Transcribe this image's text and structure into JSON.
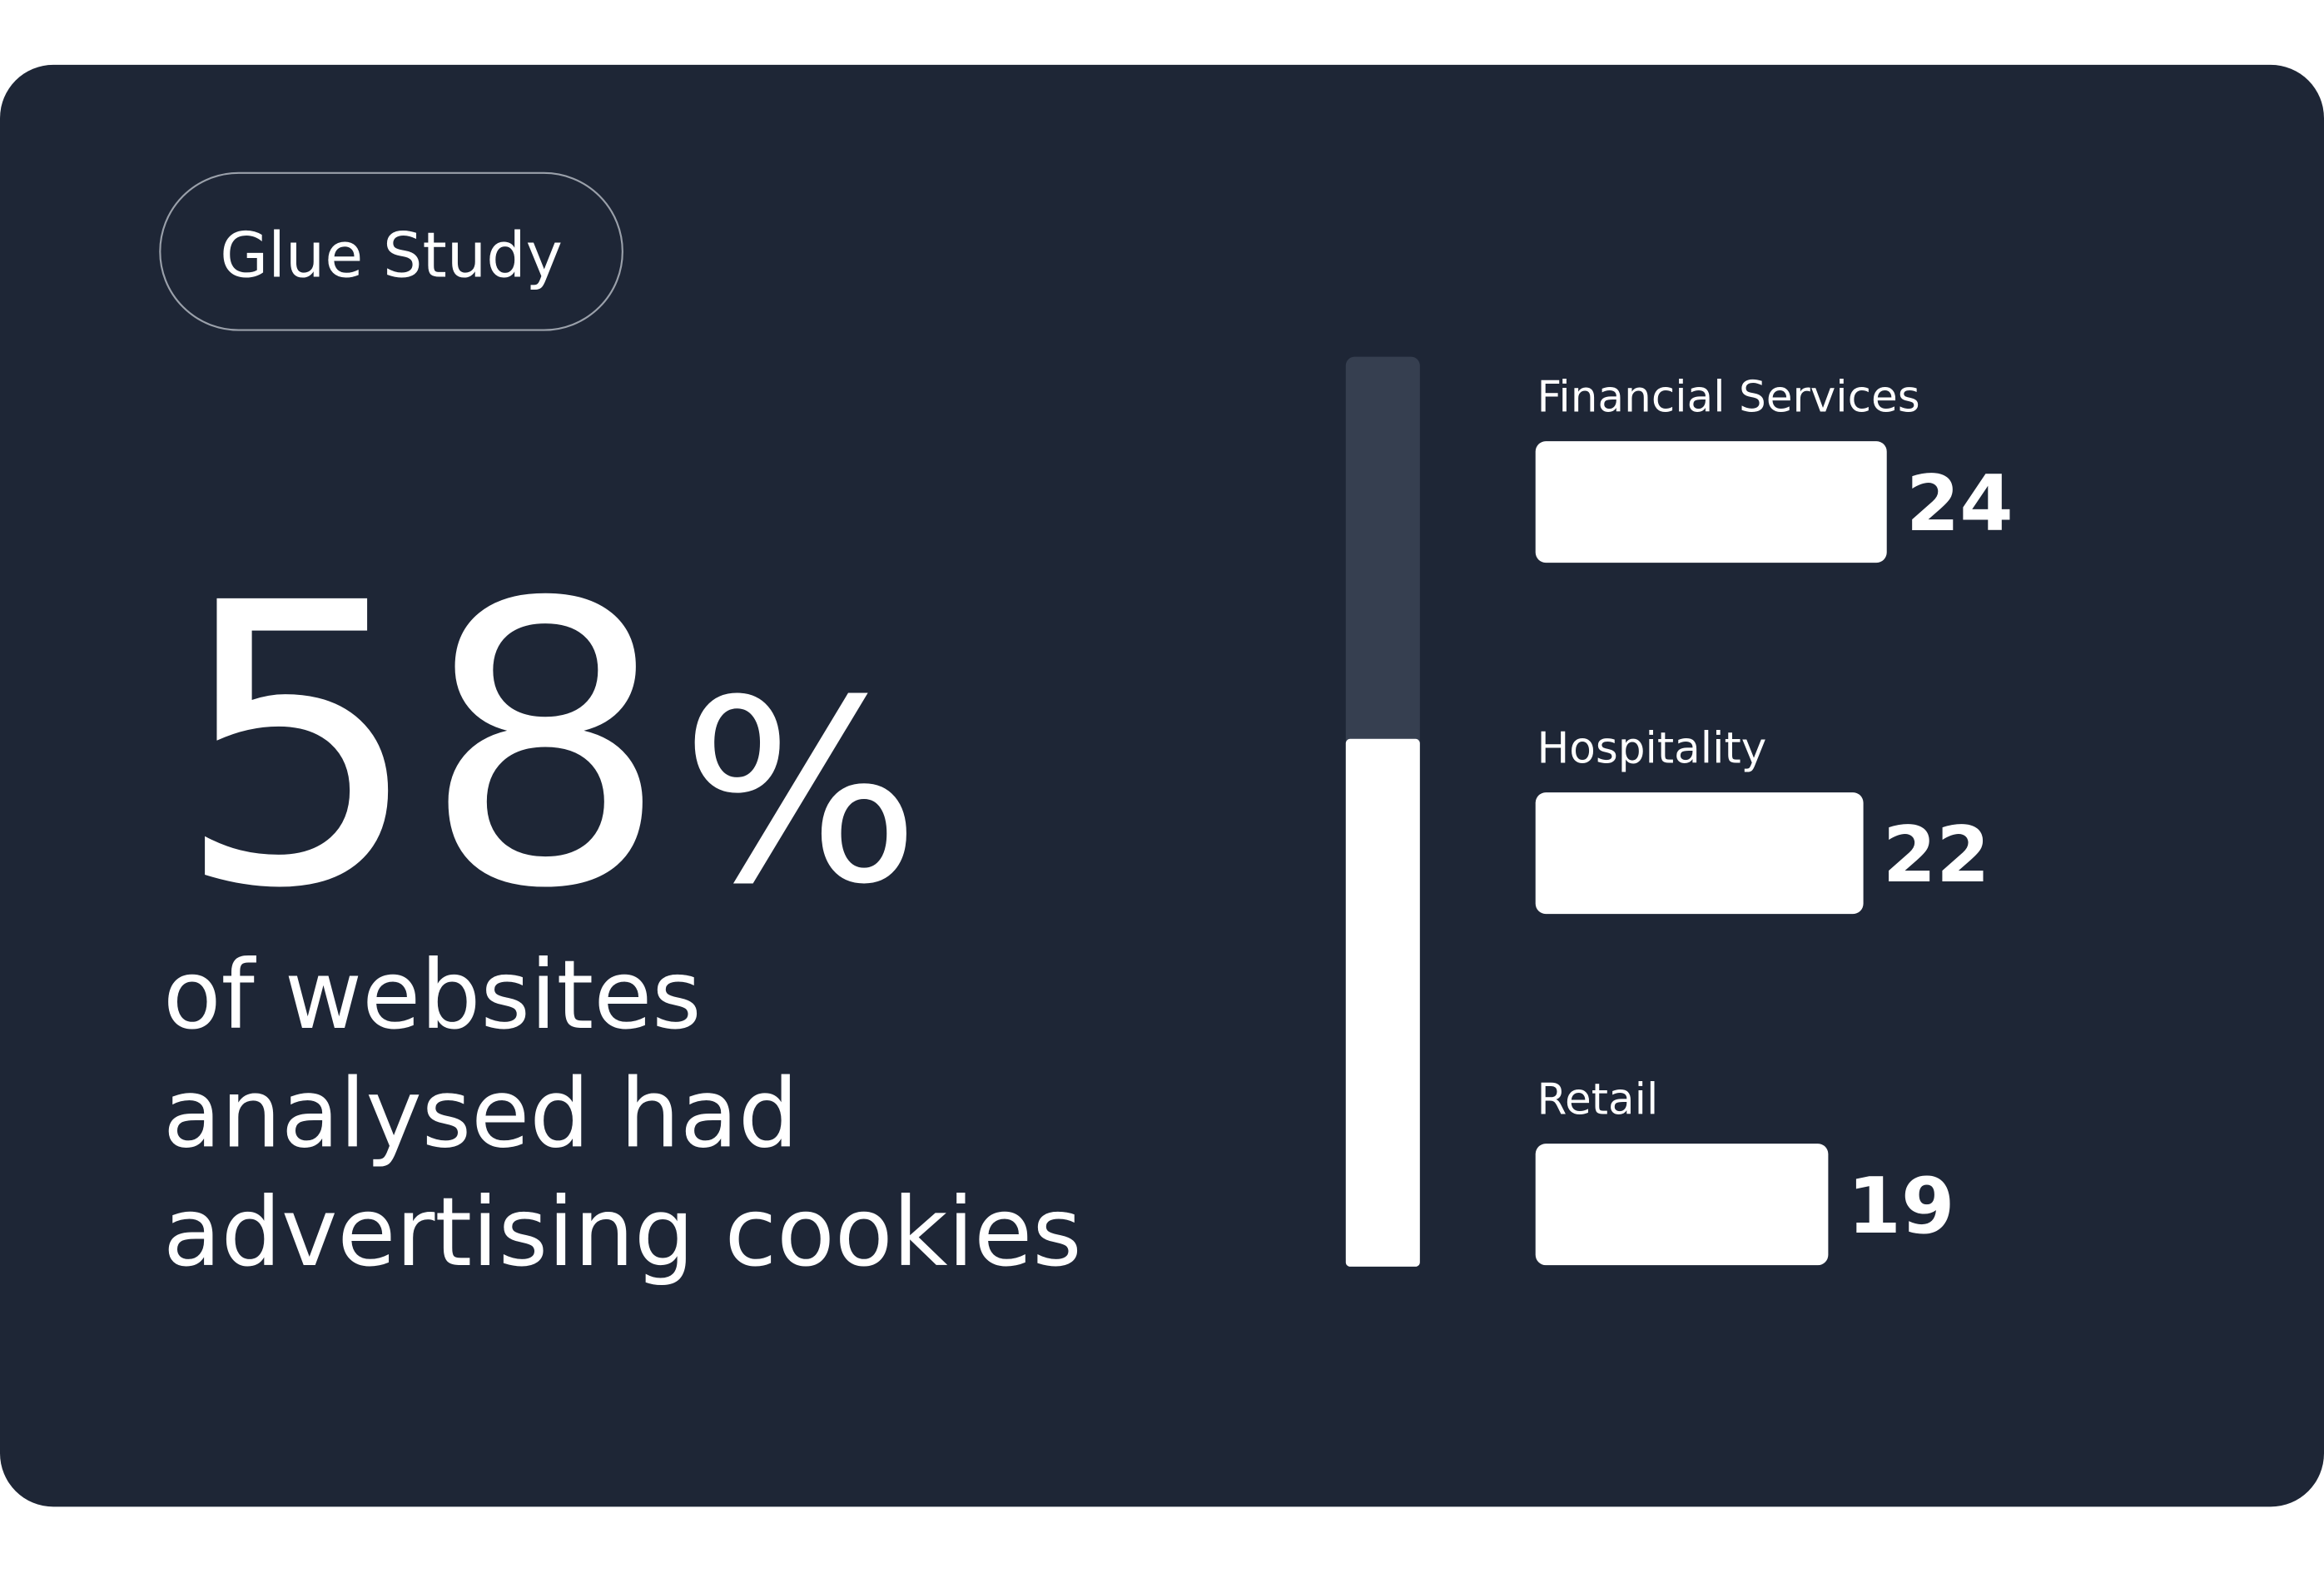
{
  "badge": "Glue Study",
  "stat": {
    "value": 58,
    "unit": "%",
    "lim": [
      0,
      100
    ],
    "description": [
      "of websites",
      "analysed had",
      "advertising cookies"
    ]
  },
  "chart_data": {
    "type": "bar",
    "orientation": "horizontal",
    "categories": [
      "Financial Services",
      "Hospitality",
      "Retail"
    ],
    "values": [
      24,
      22,
      19
    ],
    "color": "#ffffff",
    "xlim": [
      -6,
      24
    ]
  }
}
